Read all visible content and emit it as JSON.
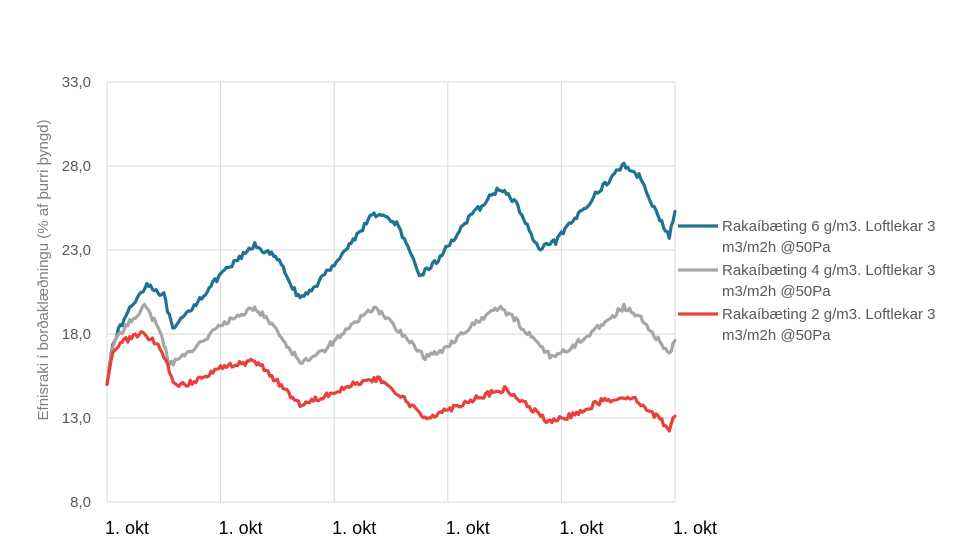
{
  "chart_data": {
    "type": "line",
    "title": "",
    "xlabel": "",
    "ylabel": "Efnisraki í borðaklæðningu (% af þurri þyngd)",
    "ylim": [
      8,
      33
    ],
    "yticks": [
      "8,0",
      "13,0",
      "18,0",
      "23,0",
      "28,0",
      "33,0"
    ],
    "xticks": [
      "1. okt",
      "1. okt",
      "1. okt",
      "1. okt",
      "1. okt",
      "1. okt"
    ],
    "x_unit": "years since start",
    "grid": "vertical and horizontal",
    "legend_position": "right",
    "series": [
      {
        "name": "Rakaíbæting 6 g/m3. Loftlekar 3 m3/m2h @50Pa",
        "color": "#1f7391",
        "points": [
          [
            0.0,
            15.0
          ],
          [
            0.05,
            17.5
          ],
          [
            0.2,
            19.5
          ],
          [
            0.35,
            21.0
          ],
          [
            0.5,
            20.3
          ],
          [
            0.58,
            18.2
          ],
          [
            0.7,
            19.2
          ],
          [
            1.0,
            21.5
          ],
          [
            1.3,
            23.3
          ],
          [
            1.5,
            22.5
          ],
          [
            1.7,
            20.0
          ],
          [
            1.85,
            21.0
          ],
          [
            2.1,
            23.0
          ],
          [
            2.35,
            25.2
          ],
          [
            2.55,
            24.6
          ],
          [
            2.75,
            21.5
          ],
          [
            2.9,
            22.3
          ],
          [
            3.15,
            24.6
          ],
          [
            3.45,
            26.7
          ],
          [
            3.6,
            25.8
          ],
          [
            3.8,
            23.0
          ],
          [
            3.95,
            23.5
          ],
          [
            4.3,
            26.3
          ],
          [
            4.55,
            28.1
          ],
          [
            4.7,
            27.3
          ],
          [
            4.85,
            25.0
          ],
          [
            4.95,
            23.8
          ],
          [
            5.0,
            25.3
          ]
        ]
      },
      {
        "name": "Rakaíbæting 4 g/m3. Loftlekar 3 m3/m2h @50Pa",
        "color": "#a6a6a6",
        "points": [
          [
            0.0,
            15.0
          ],
          [
            0.05,
            17.3
          ],
          [
            0.2,
            18.8
          ],
          [
            0.33,
            19.6
          ],
          [
            0.45,
            18.5
          ],
          [
            0.55,
            16.2
          ],
          [
            0.7,
            16.8
          ],
          [
            1.0,
            18.5
          ],
          [
            1.3,
            19.6
          ],
          [
            1.45,
            18.6
          ],
          [
            1.7,
            16.3
          ],
          [
            1.9,
            17.0
          ],
          [
            2.1,
            18.2
          ],
          [
            2.35,
            19.6
          ],
          [
            2.5,
            18.7
          ],
          [
            2.8,
            16.6
          ],
          [
            2.95,
            17.0
          ],
          [
            3.15,
            18.2
          ],
          [
            3.45,
            19.6
          ],
          [
            3.6,
            18.8
          ],
          [
            3.9,
            16.7
          ],
          [
            4.05,
            17.0
          ],
          [
            4.3,
            18.3
          ],
          [
            4.55,
            19.6
          ],
          [
            4.7,
            18.9
          ],
          [
            4.95,
            16.8
          ],
          [
            5.0,
            17.6
          ]
        ]
      },
      {
        "name": "Rakaíbæting 2 g/m3. Loftlekar 3 m3/m2h @50Pa",
        "color": "#e8403a",
        "points": [
          [
            0.0,
            15.0
          ],
          [
            0.05,
            17.0
          ],
          [
            0.15,
            17.6
          ],
          [
            0.3,
            18.0
          ],
          [
            0.45,
            17.4
          ],
          [
            0.6,
            15.0
          ],
          [
            0.7,
            15.0
          ],
          [
            1.0,
            16.0
          ],
          [
            1.3,
            16.4
          ],
          [
            1.45,
            15.5
          ],
          [
            1.7,
            13.8
          ],
          [
            1.9,
            14.3
          ],
          [
            2.15,
            15.0
          ],
          [
            2.4,
            15.3
          ],
          [
            2.55,
            14.5
          ],
          [
            2.8,
            13.0
          ],
          [
            3.0,
            13.5
          ],
          [
            3.25,
            14.2
          ],
          [
            3.5,
            14.7
          ],
          [
            3.65,
            14.0
          ],
          [
            3.9,
            12.7
          ],
          [
            4.1,
            13.2
          ],
          [
            4.35,
            14.0
          ],
          [
            4.6,
            14.3
          ],
          [
            4.75,
            13.6
          ],
          [
            4.95,
            12.4
          ],
          [
            5.0,
            13.1
          ]
        ]
      }
    ]
  }
}
